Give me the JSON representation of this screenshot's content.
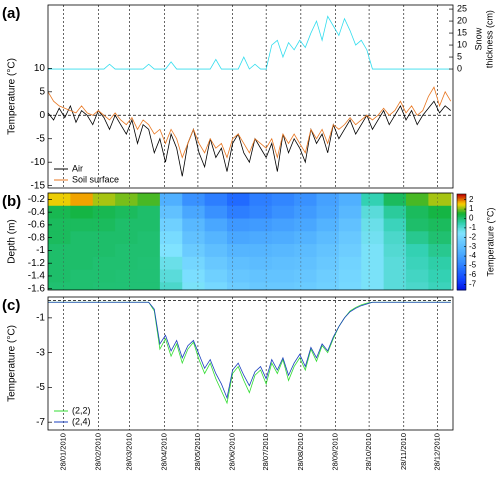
{
  "chart_data": [
    {
      "type": "line",
      "panel_label": "(a)",
      "ylabel": "Temperature (°C)",
      "y2label": [
        "Snow",
        "thickness (cm)"
      ],
      "xlim": [
        14,
        376
      ],
      "xticks": [
        28,
        59,
        87,
        118,
        148,
        179,
        209,
        240,
        271,
        301,
        332,
        362
      ],
      "ylim": [
        -15.5,
        23.5
      ],
      "yticks": [
        -15,
        -10,
        -5,
        0,
        5,
        10
      ],
      "y2lim": [
        -49.6,
        26.7
      ],
      "y2ticks": [
        0,
        5,
        10,
        15,
        20,
        25
      ],
      "hline": 0,
      "legend": "lower left",
      "x": [
        14,
        19,
        24,
        29,
        34,
        39,
        44,
        49,
        54,
        59,
        64,
        69,
        74,
        79,
        84,
        89,
        94,
        99,
        104,
        109,
        114,
        119,
        124,
        129,
        134,
        139,
        144,
        149,
        154,
        159,
        164,
        169,
        174,
        179,
        184,
        189,
        194,
        199,
        204,
        209,
        214,
        219,
        224,
        229,
        234,
        239,
        244,
        249,
        254,
        259,
        264,
        269,
        274,
        279,
        284,
        289,
        294,
        299,
        304,
        309,
        314,
        319,
        324,
        329,
        334,
        339,
        344,
        349,
        354,
        359,
        364,
        369,
        374
      ],
      "series": [
        {
          "name": "Air",
          "color": "#000000",
          "values": [
            0.5,
            -1,
            1.5,
            -0.5,
            2,
            -1.5,
            1,
            0,
            -2,
            1,
            -0.5,
            -3,
            0,
            -2,
            -4,
            -1,
            -6,
            -2,
            -3,
            -8,
            -5,
            -10,
            -4,
            -7,
            -13,
            -6,
            -3,
            -8,
            -11,
            -5,
            -9,
            -7,
            -12,
            -6,
            -4,
            -8,
            -10,
            -5,
            -7,
            -9,
            -6,
            -12,
            -4,
            -8,
            -5,
            -7,
            -10,
            -3,
            -6,
            -4,
            -8,
            -2,
            -5,
            -3,
            -1,
            -4,
            -2,
            0,
            -3,
            -1,
            1,
            -2,
            0,
            2,
            -1,
            1,
            -2,
            0,
            1.5,
            3,
            0.5,
            2,
            1
          ]
        },
        {
          "name": "Soil surface",
          "color": "#e87722",
          "values": [
            5,
            3,
            2,
            1.5,
            1,
            0.5,
            2,
            0.5,
            0,
            1,
            0,
            -1,
            0.5,
            -1,
            -2,
            -0.5,
            -3,
            -1,
            -2,
            -4,
            -3,
            -6,
            -3,
            -5,
            -9,
            -6,
            -3,
            -6,
            -8,
            -5,
            -7,
            -6,
            -9,
            -5,
            -4,
            -6,
            -8,
            -5,
            -6,
            -7,
            -5,
            -9,
            -4,
            -6,
            -4,
            -6,
            -8,
            -3,
            -5,
            -3,
            -6,
            -2,
            -3,
            -2,
            -0.5,
            -2,
            -1,
            0,
            -1,
            0,
            1.5,
            0,
            1,
            3,
            0.5,
            2,
            0,
            1,
            4,
            6,
            2,
            5,
            3
          ]
        },
        {
          "color": "#33ddee",
          "axis": "y2",
          "values": [
            0,
            0,
            0,
            0,
            0,
            0,
            0,
            0,
            0,
            0,
            0,
            2,
            0,
            0,
            0,
            0,
            0,
            0,
            2,
            0,
            0,
            0,
            3,
            0,
            0,
            0,
            0,
            0,
            0,
            0,
            4,
            0,
            0,
            0,
            0,
            5,
            0,
            2,
            0,
            0,
            10,
            12,
            5,
            11,
            8,
            12,
            9,
            15,
            20,
            12,
            22,
            18,
            14,
            21,
            16,
            10,
            12,
            8,
            0,
            0,
            0,
            0,
            0,
            0,
            0,
            0,
            0,
            0,
            0,
            0,
            0,
            0,
            0
          ]
        }
      ]
    },
    {
      "type": "heatmap",
      "panel_label": "(b)",
      "ylabel": "Depth (m)",
      "clabel": "Temperature (°C)",
      "xlim": [
        14,
        376
      ],
      "xticks": [
        28,
        59,
        87,
        118,
        148,
        179,
        209,
        240,
        271,
        301,
        332,
        362
      ],
      "ylim": [
        -1.62,
        -0.1
      ],
      "yticks": [
        -0.2,
        -0.4,
        -0.6,
        -0.8,
        -1,
        -1.2,
        -1.4,
        -1.6
      ],
      "clim": [
        -7.6,
        2.6
      ],
      "cticks": [
        2,
        1,
        0,
        -1,
        -2,
        -3,
        -4,
        -5,
        -6,
        -7
      ],
      "colormap": [
        "#0010e0",
        "#1040ff",
        "#2068ff",
        "#3890ff",
        "#50b0ff",
        "#68c8ff",
        "#80e4ff",
        "#30d0b0",
        "#10b030",
        "#ffd000",
        "#c00000"
      ],
      "x": [
        24,
        44,
        64,
        84,
        104,
        124,
        144,
        164,
        184,
        204,
        224,
        244,
        264,
        284,
        304,
        324,
        344,
        364
      ],
      "y": [
        -0.2,
        -0.4,
        -0.6,
        -0.8,
        -1,
        -1.2,
        -1.4,
        -1.6
      ],
      "z": [
        [
          1.5,
          1.8,
          1.2,
          1.0,
          0.8,
          -3.5,
          -4.5,
          -5.0,
          -5.5,
          -5.0,
          -4.8,
          -4.5,
          -4.0,
          -3.5,
          -0.5,
          0.2,
          0.8,
          1.2
        ],
        [
          0.3,
          0.4,
          0.3,
          0.2,
          0.1,
          -2.8,
          -3.8,
          -4.5,
          -5.0,
          -4.8,
          -4.5,
          -4.2,
          -3.8,
          -3.2,
          -1.0,
          -0.3,
          0.2,
          0.4
        ],
        [
          0.2,
          0.2,
          0.2,
          0.1,
          0.1,
          -2.2,
          -3.2,
          -3.8,
          -4.3,
          -4.2,
          -4.0,
          -3.8,
          -3.4,
          -2.8,
          -1.2,
          -0.6,
          0.1,
          0.2
        ],
        [
          0.2,
          0.1,
          0.1,
          0.1,
          0.05,
          -1.8,
          -2.8,
          -3.3,
          -3.8,
          -3.7,
          -3.6,
          -3.4,
          -3.0,
          -2.5,
          -1.3,
          -0.8,
          -0.2,
          0.05
        ],
        [
          0.1,
          0.1,
          0.1,
          0.05,
          0.05,
          -1.5,
          -2.4,
          -2.9,
          -3.3,
          -3.3,
          -3.2,
          -3.0,
          -2.7,
          -2.3,
          -1.4,
          -0.9,
          -0.5,
          -0.2
        ],
        [
          0.1,
          0.1,
          0.05,
          0.05,
          0.03,
          -1.2,
          -2.0,
          -2.5,
          -2.9,
          -3.0,
          -2.9,
          -2.8,
          -2.5,
          -2.1,
          -1.4,
          -1.0,
          -0.6,
          -0.4
        ],
        [
          0.1,
          0.05,
          0.05,
          0.03,
          0.02,
          -1.0,
          -1.7,
          -2.2,
          -2.6,
          -2.7,
          -2.7,
          -2.6,
          -2.3,
          -2.0,
          -1.4,
          -1.0,
          -0.7,
          -0.5
        ],
        [
          0.05,
          0.05,
          0.03,
          0.02,
          0.02,
          -0.8,
          -1.4,
          -1.9,
          -2.3,
          -2.5,
          -2.5,
          -2.4,
          -2.2,
          -1.9,
          -1.4,
          -1.0,
          -0.8,
          -0.6
        ]
      ]
    },
    {
      "type": "line",
      "panel_label": "(c)",
      "ylabel": "Temperature (°C)",
      "xlim": [
        14,
        376
      ],
      "xticks": [
        {
          "value": 28,
          "label": "28/01/2010"
        },
        {
          "value": 59,
          "label": "28/02/2010"
        },
        {
          "value": 87,
          "label": "28/03/2010"
        },
        {
          "value": 118,
          "label": "28/04/2010"
        },
        {
          "value": 148,
          "label": "28/05/2010"
        },
        {
          "value": 179,
          "label": "28/06/2010"
        },
        {
          "value": 209,
          "label": "28/07/2010"
        },
        {
          "value": 240,
          "label": "28/08/2010"
        },
        {
          "value": 271,
          "label": "28/09/2010"
        },
        {
          "value": 301,
          "label": "28/10/2010"
        },
        {
          "value": 332,
          "label": "28/11/2010"
        },
        {
          "value": 362,
          "label": "28/12/2010"
        }
      ],
      "ylim": [
        -7.45,
        0.2
      ],
      "yticks": [
        -1,
        -3,
        -5,
        -7
      ],
      "hline": 0,
      "legend": "lower left",
      "x": [
        14,
        19,
        24,
        29,
        34,
        39,
        44,
        49,
        54,
        59,
        64,
        69,
        74,
        79,
        84,
        89,
        94,
        99,
        104,
        109,
        114,
        119,
        124,
        129,
        134,
        139,
        144,
        149,
        154,
        159,
        164,
        169,
        174,
        179,
        184,
        189,
        194,
        199,
        204,
        209,
        214,
        219,
        224,
        229,
        234,
        239,
        244,
        249,
        254,
        259,
        264,
        269,
        274,
        279,
        284,
        289,
        294,
        299,
        304,
        309,
        314,
        319,
        324,
        329,
        334,
        339,
        344,
        349,
        354,
        359,
        364,
        369,
        374
      ],
      "series": [
        {
          "name": "(2,2)",
          "color": "#33dd33",
          "values": [
            -0.1,
            -0.1,
            -0.1,
            -0.1,
            -0.1,
            -0.1,
            -0.1,
            -0.1,
            -0.1,
            -0.1,
            -0.1,
            -0.1,
            -0.1,
            -0.1,
            -0.1,
            -0.1,
            -0.1,
            -0.1,
            -0.1,
            -0.6,
            -2.8,
            -2.2,
            -3.2,
            -2.5,
            -3.6,
            -2.8,
            -2.4,
            -3.4,
            -4.2,
            -3.6,
            -4.5,
            -5.2,
            -5.9,
            -4.2,
            -3.8,
            -4.6,
            -5.3,
            -4.3,
            -4.0,
            -4.8,
            -3.6,
            -4.2,
            -3.4,
            -4.6,
            -3.8,
            -3.3,
            -4.0,
            -2.8,
            -3.5,
            -2.6,
            -3.0,
            -2.2,
            -1.5,
            -1.0,
            -0.6,
            -0.4,
            -0.25,
            -0.15,
            -0.1,
            -0.1,
            -0.1,
            -0.1,
            -0.1,
            -0.1,
            -0.1,
            -0.1,
            -0.1,
            -0.1,
            -0.1,
            -0.1,
            -0.1,
            -0.1,
            -0.1
          ]
        },
        {
          "name": "(2,4)",
          "color": "#1a3fbf",
          "values": [
            -0.1,
            -0.1,
            -0.1,
            -0.1,
            -0.1,
            -0.1,
            -0.1,
            -0.1,
            -0.1,
            -0.1,
            -0.1,
            -0.1,
            -0.1,
            -0.1,
            -0.1,
            -0.1,
            -0.1,
            -0.1,
            -0.1,
            -0.5,
            -2.5,
            -2.0,
            -2.9,
            -2.3,
            -3.3,
            -2.6,
            -2.3,
            -3.1,
            -3.9,
            -3.4,
            -4.2,
            -4.8,
            -5.6,
            -4.0,
            -3.6,
            -4.3,
            -4.9,
            -4.1,
            -3.8,
            -4.5,
            -3.4,
            -4.0,
            -3.3,
            -4.3,
            -3.6,
            -3.1,
            -3.8,
            -2.7,
            -3.3,
            -2.5,
            -2.9,
            -2.1,
            -1.5,
            -1.0,
            -0.65,
            -0.45,
            -0.3,
            -0.2,
            -0.1,
            -0.1,
            -0.1,
            -0.1,
            -0.1,
            -0.1,
            -0.1,
            -0.1,
            -0.1,
            -0.1,
            -0.1,
            -0.1,
            -0.1,
            -0.1,
            -0.1
          ]
        }
      ]
    }
  ]
}
